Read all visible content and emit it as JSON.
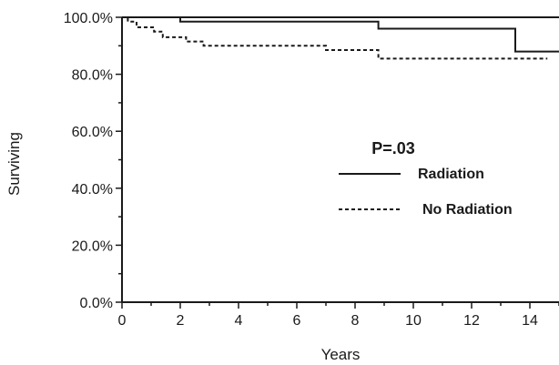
{
  "chart_data": {
    "type": "line",
    "xlabel": "Years",
    "ylabel": "Surviving",
    "xlim": [
      0,
      15
    ],
    "ylim": [
      0,
      100
    ],
    "x_ticks": [
      0,
      2,
      4,
      6,
      8,
      10,
      12,
      14
    ],
    "x_tick_labels": [
      "0",
      "2",
      "4",
      "6",
      "8",
      "10",
      "12",
      "14"
    ],
    "y_ticks": [
      0,
      20,
      40,
      60,
      80,
      100
    ],
    "y_tick_labels": [
      "0.0%",
      "20.0%",
      "40.0%",
      "60.0%",
      "80.0%",
      "100.0%"
    ],
    "grid": false,
    "annotation": "P=.03",
    "legend_position": "center-right",
    "series": [
      {
        "name": "Radiation",
        "style": "solid",
        "x": [
          0,
          2.0,
          2.0,
          8.8,
          8.8,
          13.5,
          13.5,
          15
        ],
        "y": [
          100,
          100,
          98.5,
          98.5,
          96,
          96,
          88,
          88
        ]
      },
      {
        "name": "No Radiation",
        "style": "dashed",
        "x": [
          0,
          0.2,
          0.2,
          0.5,
          0.5,
          1.1,
          1.1,
          1.4,
          1.4,
          2.2,
          2.2,
          2.8,
          2.8,
          7.0,
          7.0,
          8.8,
          8.8,
          14.6
        ],
        "y": [
          100,
          100,
          98.5,
          98.5,
          96.5,
          96.5,
          95,
          95,
          93,
          93,
          91.5,
          91.5,
          90,
          90,
          88.5,
          88.5,
          85.5,
          85.5
        ]
      }
    ]
  }
}
